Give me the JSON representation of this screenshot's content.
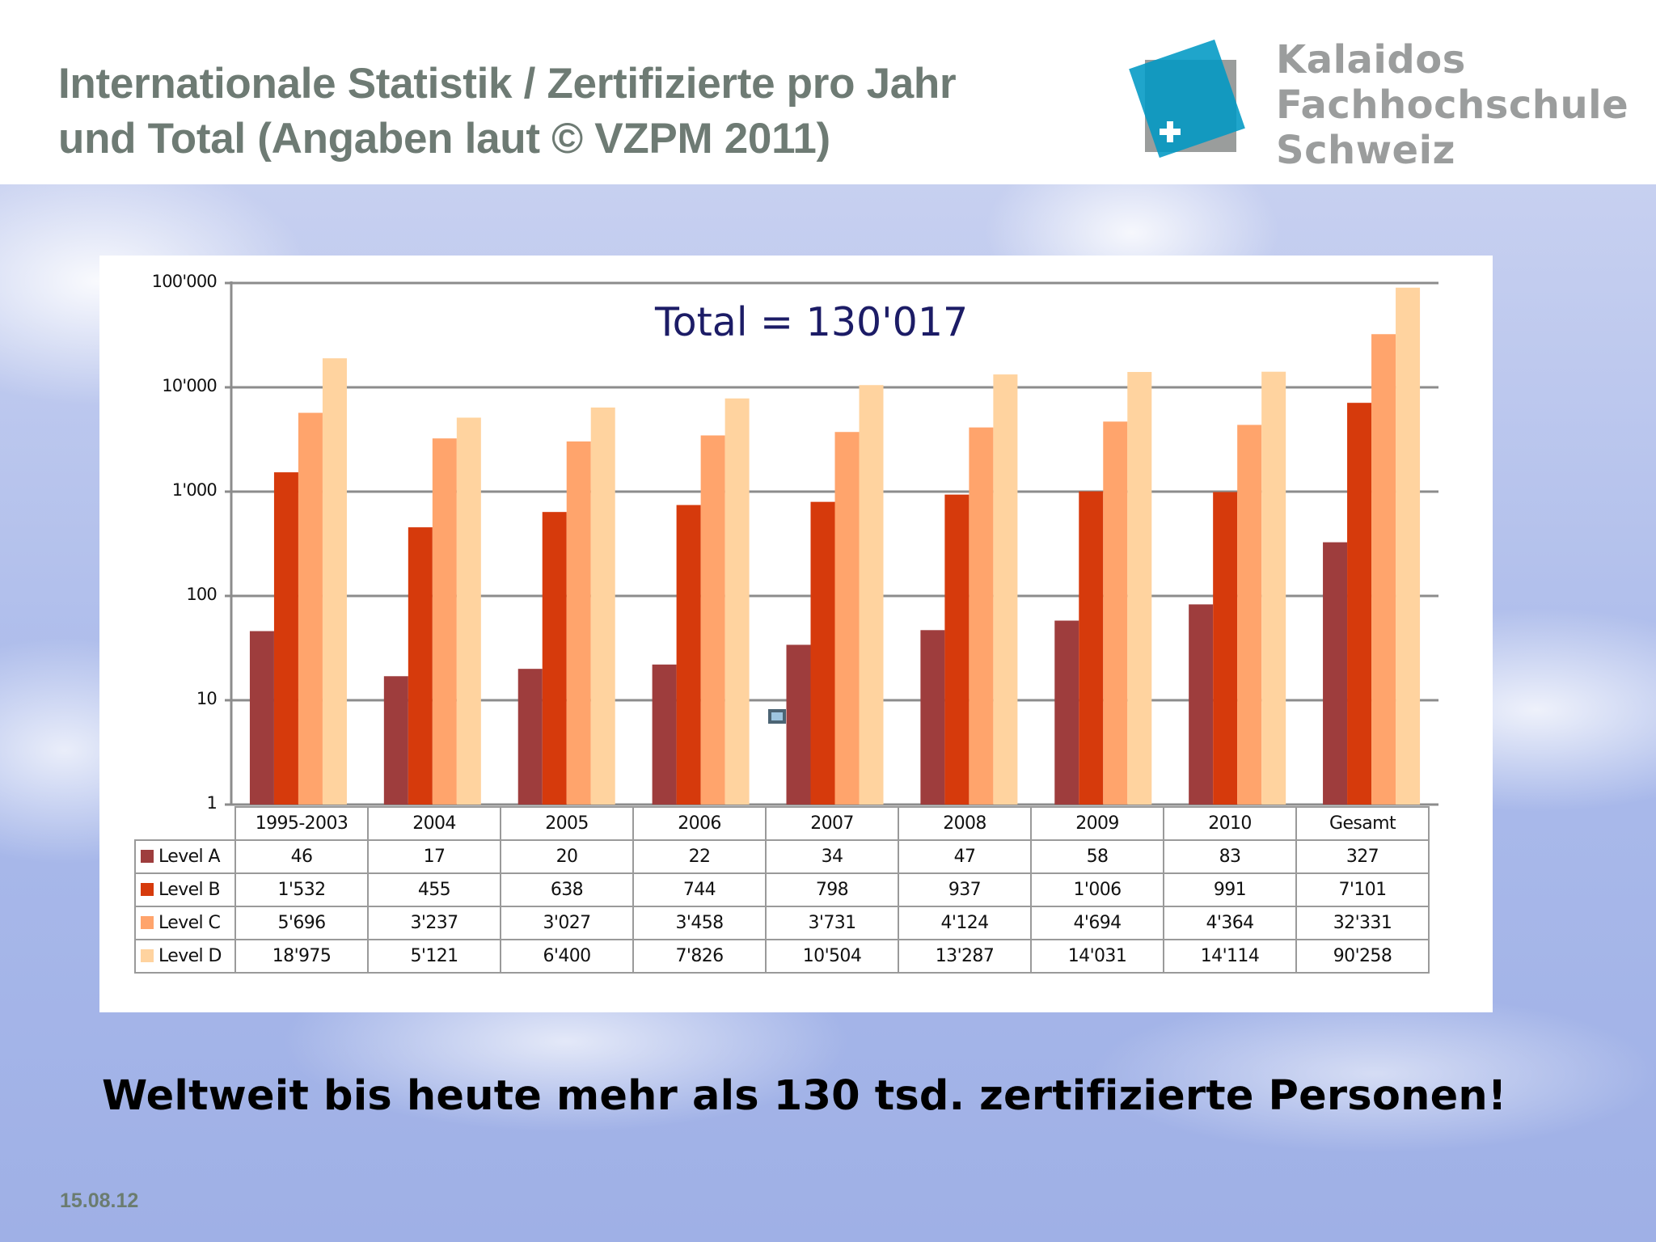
{
  "slide": {
    "title_line1": "Internationale Statistik / Zertifizierte pro Jahr",
    "title_line2": "und Total (Angaben laut © VZPM 2011)",
    "logo": {
      "line1": "Kalaidos",
      "line2": "Fachhochschule",
      "line3": "Schweiz",
      "colors": {
        "gray": "#9a9d9c",
        "blue": "#0098c4",
        "text": "#9b9d9d"
      }
    },
    "footer_statement": "Weltweit bis heute mehr als 130 tsd. zertifizierte Personen!",
    "date": "15.08.12"
  },
  "chart": {
    "total_label": "Total = 130'017",
    "y_ticks": [
      "100'000",
      "10'000",
      "1'000",
      "100",
      "10",
      "1"
    ],
    "categories": [
      "1995-2003",
      "2004",
      "2005",
      "2006",
      "2007",
      "2008",
      "2009",
      "2010",
      "Gesamt"
    ],
    "series": [
      {
        "name": "Level A",
        "color": "#9e3d3d",
        "display": [
          "46",
          "17",
          "20",
          "22",
          "34",
          "47",
          "58",
          "83",
          "327"
        ]
      },
      {
        "name": "Level B",
        "color": "#d63a0c",
        "display": [
          "1'532",
          "455",
          "638",
          "744",
          "798",
          "937",
          "1'006",
          "991",
          "7'101"
        ]
      },
      {
        "name": "Level C",
        "color": "#ffa46c",
        "display": [
          "5'696",
          "3'237",
          "3'027",
          "3'458",
          "3'731",
          "4'124",
          "4'694",
          "4'364",
          "32'331"
        ]
      },
      {
        "name": "Level D",
        "color": "#ffd39f",
        "display": [
          "18'975",
          "5'121",
          "6'400",
          "7'826",
          "10'504",
          "13'287",
          "14'031",
          "14'114",
          "90'258"
        ]
      }
    ]
  },
  "chart_data": {
    "type": "bar",
    "title": "Total = 130'017",
    "xlabel": "",
    "ylabel": "",
    "yscale": "log",
    "ylim": [
      1,
      100000
    ],
    "grid": true,
    "legend_position": "data-table-left",
    "categories": [
      "1995-2003",
      "2004",
      "2005",
      "2006",
      "2007",
      "2008",
      "2009",
      "2010",
      "Gesamt"
    ],
    "series": [
      {
        "name": "Level A",
        "values": [
          46,
          17,
          20,
          22,
          34,
          47,
          58,
          83,
          327
        ]
      },
      {
        "name": "Level B",
        "values": [
          1532,
          455,
          638,
          744,
          798,
          937,
          1006,
          991,
          7101
        ]
      },
      {
        "name": "Level C",
        "values": [
          5696,
          3237,
          3027,
          3458,
          3731,
          4124,
          4694,
          4364,
          32331
        ]
      },
      {
        "name": "Level D",
        "values": [
          18975,
          5121,
          6400,
          7826,
          10504,
          13287,
          14031,
          14114,
          90258
        ]
      }
    ]
  }
}
